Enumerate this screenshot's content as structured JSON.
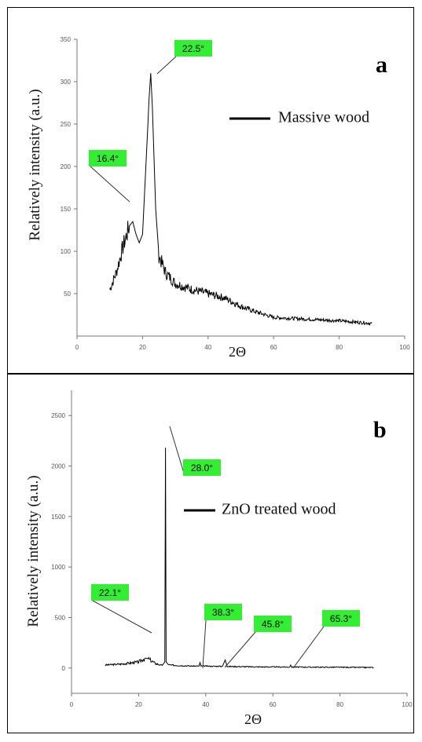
{
  "chart_data": [
    {
      "type": "line",
      "panel_label": "a",
      "xlabel": "2Θ",
      "ylabel": "Relatively intensity (a.u.)",
      "xlim": [
        0,
        100
      ],
      "ylim": [
        0,
        350
      ],
      "xticks": [
        "0",
        "20",
        "40",
        "60",
        "80",
        "100"
      ],
      "yticks": [
        "50",
        "100",
        "150",
        "200",
        "250",
        "300",
        "350"
      ],
      "legend": {
        "position": "top-right",
        "entries": [
          "Massive wood"
        ]
      },
      "series": [
        {
          "name": "Massive wood",
          "color": "#000000",
          "x": [
            10,
            12,
            14,
            16,
            17,
            18,
            19,
            20,
            21,
            22,
            22.5,
            23,
            24,
            25,
            27,
            30,
            35,
            40,
            45,
            50,
            55,
            60,
            70,
            80,
            90
          ],
          "y": [
            55,
            75,
            105,
            130,
            135,
            120,
            110,
            120,
            200,
            280,
            310,
            270,
            150,
            95,
            75,
            62,
            55,
            50,
            45,
            35,
            28,
            22,
            20,
            18,
            15
          ]
        }
      ],
      "annotations": [
        {
          "label": "16.4°",
          "x": 16.4,
          "y": 135
        },
        {
          "label": "22.5°",
          "x": 22.5,
          "y": 310
        }
      ]
    },
    {
      "type": "line",
      "panel_label": "b",
      "xlabel": "2Θ",
      "ylabel": "Relatively intensity (a.u.)",
      "xlim": [
        0,
        100
      ],
      "ylim": [
        -250,
        2750
      ],
      "xticks": [
        "0",
        "20",
        "40",
        "60",
        "80",
        "100"
      ],
      "yticks": [
        "0",
        "500",
        "1000",
        "1500",
        "2000",
        "2500"
      ],
      "legend": {
        "position": "center-right",
        "entries": [
          "ZnO treated wood"
        ]
      },
      "series": [
        {
          "name": "ZnO treated wood",
          "color": "#000000",
          "x": [
            10,
            15,
            20,
            22,
            23,
            25,
            27,
            27.8,
            28.0,
            28.2,
            29,
            32,
            36,
            38,
            38.3,
            38.6,
            42,
            45,
            45.8,
            46.4,
            55,
            65,
            65.3,
            65.6,
            80,
            90
          ],
          "y": [
            30,
            40,
            60,
            100,
            90,
            45,
            25,
            60,
            2180,
            60,
            30,
            25,
            20,
            20,
            55,
            20,
            18,
            18,
            80,
            16,
            12,
            10,
            30,
            10,
            8,
            5
          ]
        }
      ],
      "annotations": [
        {
          "label": "22.1°",
          "x": 22.1,
          "y": 100
        },
        {
          "label": "28.0°",
          "x": 28.0,
          "y": 2180
        },
        {
          "label": "38.3°",
          "x": 38.3,
          "y": 55
        },
        {
          "label": "45.8°",
          "x": 45.8,
          "y": 80
        },
        {
          "label": "65.3°",
          "x": 65.3,
          "y": 30
        }
      ]
    }
  ],
  "colors": {
    "peak_label_bg": "#33ee33",
    "line": "#000000",
    "axis": "#777777"
  }
}
